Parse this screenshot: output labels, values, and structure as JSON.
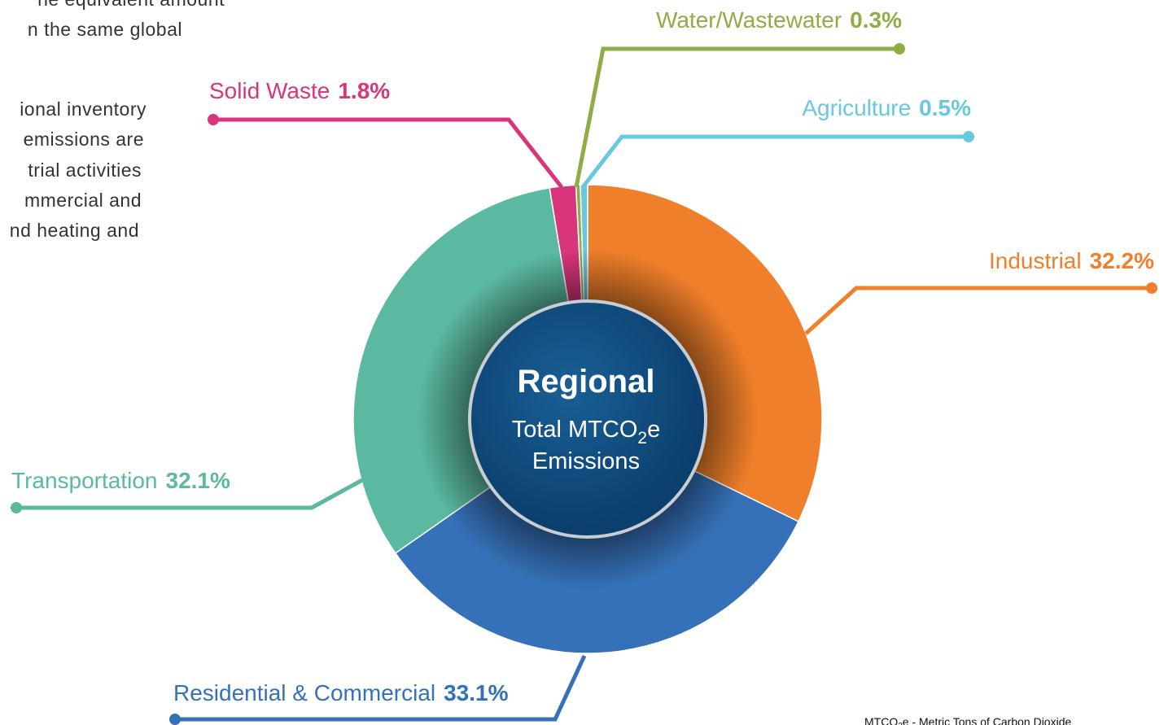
{
  "chart_data": {
    "type": "pie",
    "center_title": "Regional",
    "center_line1": {
      "before": "Total MTCO",
      "sub": "2",
      "after": "e"
    },
    "center_line2": "Emissions",
    "categories": [
      "Industrial",
      "Residential & Commercial",
      "Transportation",
      "Solid Waste",
      "Water/Wastewater",
      "Agriculture"
    ],
    "values": [
      32.2,
      33.1,
      32.1,
      1.8,
      0.3,
      0.5
    ],
    "value_labels": [
      "32.2%",
      "33.1%",
      "32.1%",
      "1.8%",
      "0.3%",
      "0.5%"
    ],
    "colors": [
      "#ef7f2a",
      "#3571b8",
      "#5bb9a1",
      "#d9357d",
      "#8fac45",
      "#68c8dd"
    ]
  },
  "side_text": [
    "he equivalent amount",
    "n the same global",
    "ional inventory",
    "emissions are",
    "trial activities",
    "mmercial and",
    "nd heating and"
  ],
  "footnote": {
    "before": "MTCO",
    "sub": "2",
    "after": "e - Metric Tons of Carbon Dioxide"
  }
}
